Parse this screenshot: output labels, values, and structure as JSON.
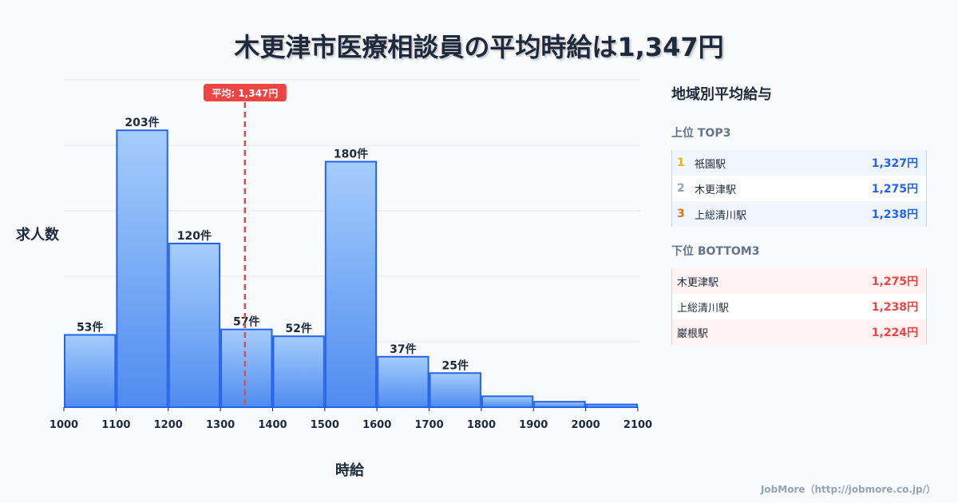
{
  "title": "木更津市医療相談員の平均時給は1,347円",
  "chart_data": {
    "type": "bar",
    "title": "木更津市医療相談員の平均時給は1,347円",
    "xlabel": "時給",
    "ylabel": "求人数",
    "bin_edges": [
      1000,
      1100,
      1200,
      1300,
      1400,
      1500,
      1600,
      1700,
      1800,
      1900,
      2000,
      2100
    ],
    "values": [
      53,
      203,
      120,
      57,
      52,
      180,
      37,
      25,
      8,
      4,
      2
    ],
    "labels": [
      "53件",
      "203件",
      "120件",
      "57件",
      "52件",
      "180件",
      "37件",
      "25件",
      "",
      "",
      ""
    ],
    "xticks": [
      "1000",
      "1100",
      "1200",
      "1300",
      "1400",
      "1500",
      "1600",
      "1700",
      "1800",
      "1900",
      "2000",
      "2100"
    ],
    "ylim": [
      0,
      240
    ],
    "xlim": [
      1000,
      2100
    ],
    "mean": 1347,
    "mean_label": "平均: 1,347円",
    "grid": true
  },
  "panel": {
    "title": "地域別平均給与",
    "top_title": "上位 TOP3",
    "top": [
      {
        "rank": "1",
        "name": "祇園駅",
        "value": "1,327円",
        "color": "#eab308"
      },
      {
        "rank": "2",
        "name": "木更津駅",
        "value": "1,275円",
        "color": "#94a3b8"
      },
      {
        "rank": "3",
        "name": "上総清川駅",
        "value": "1,238円",
        "color": "#d97706"
      }
    ],
    "bottom_title": "下位 BOTTOM3",
    "bottom": [
      {
        "name": "木更津駅",
        "value": "1,275円"
      },
      {
        "name": "上総清川駅",
        "value": "1,238円"
      },
      {
        "name": "巌根駅",
        "value": "1,224円"
      }
    ]
  },
  "footer": "JobMore（http://jobmore.co.jp/）"
}
